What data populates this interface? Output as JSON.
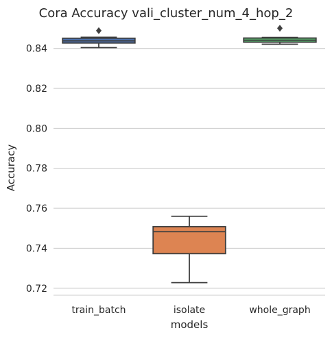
{
  "chart_data": {
    "type": "box",
    "title": "Cora Accuracy vali_cluster_num_4_hop_2",
    "xlabel": "models",
    "ylabel": "Accuracy",
    "ylim": [
      0.7165,
      0.8512
    ],
    "yticks": [
      0.72,
      0.74,
      0.76,
      0.78,
      0.8,
      0.82,
      0.84
    ],
    "ytick_labels": [
      "0.72",
      "0.74",
      "0.76",
      "0.78",
      "0.80",
      "0.82",
      "0.84"
    ],
    "grid": "horizontal",
    "categories": [
      "train_batch",
      "isolate",
      "whole_graph"
    ],
    "boxes": [
      {
        "category": "train_batch",
        "whisker_low": 0.8404,
        "q1": 0.8427,
        "median": 0.8438,
        "q3": 0.8451,
        "whisker_high": 0.8456,
        "fliers": [
          0.8489
        ],
        "color": "#4c72b0"
      },
      {
        "category": "isolate",
        "whisker_low": 0.7228,
        "q1": 0.7373,
        "median": 0.7483,
        "q3": 0.7508,
        "whisker_high": 0.756,
        "fliers": [],
        "color": "#dd8452"
      },
      {
        "category": "whole_graph",
        "whisker_low": 0.8421,
        "q1": 0.8431,
        "median": 0.8441,
        "q3": 0.8452,
        "whisker_high": 0.8455,
        "fliers": [
          0.8501
        ],
        "color": "#55a868"
      }
    ]
  }
}
